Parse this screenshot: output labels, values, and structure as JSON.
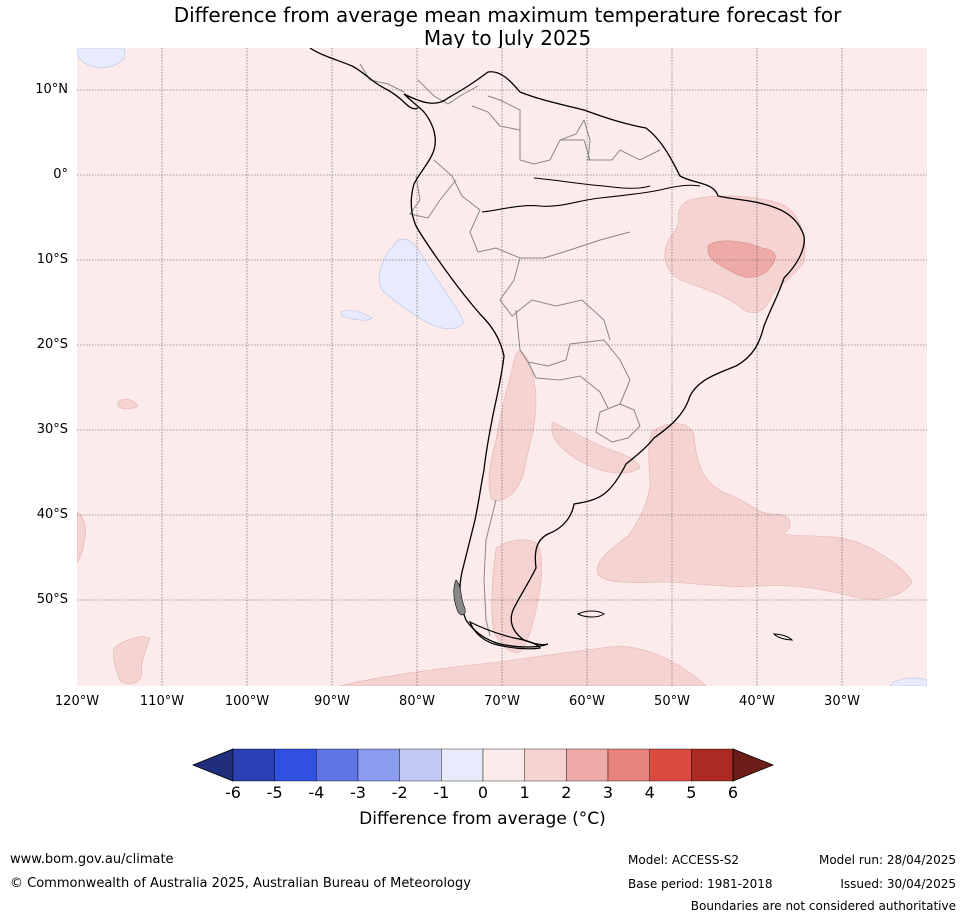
{
  "title": {
    "line1": "Difference from average mean maximum temperature forecast for",
    "line2": "May to July 2025"
  },
  "map": {
    "extent_lon": [
      -120,
      -20
    ],
    "extent_lat": [
      -60,
      15
    ],
    "lat_labels": [
      "10°N",
      "0°",
      "10°S",
      "20°S",
      "30°S",
      "40°S",
      "50°S"
    ],
    "lat_values": [
      10,
      0,
      -10,
      -20,
      -30,
      -40,
      -50
    ],
    "lon_labels": [
      "120°W",
      "110°W",
      "100°W",
      "90°W",
      "80°W",
      "70°W",
      "60°W",
      "50°W",
      "40°W",
      "30°W"
    ],
    "lon_values": [
      -120,
      -110,
      -100,
      -90,
      -80,
      -70,
      -60,
      -50,
      -40,
      -30
    ],
    "colors": {
      "background": "#fbebea",
      "anomaly_1_2": "#f5d3d1",
      "anomaly_2_3": "#edaaa7",
      "anomaly_neg": "#e7ebfb",
      "coastline": "#000000",
      "borders": "#888888"
    }
  },
  "colorbar": {
    "ticks": [
      "-6",
      "-5",
      "-4",
      "-3",
      "-2",
      "-1",
      "0",
      "1",
      "2",
      "3",
      "4",
      "5",
      "6"
    ],
    "colors": [
      "#1f2d7a",
      "#2a3fb3",
      "#3050e0",
      "#5f75e6",
      "#8b9cee",
      "#c2c9f4",
      "#e8ebfb",
      "#fbebea",
      "#f5d3d1",
      "#edaaa7",
      "#e8837d",
      "#da4a3f",
      "#ab2b22",
      "#6e1c17"
    ],
    "label": "Difference from average (°C)"
  },
  "footer": {
    "website": "www.bom.gov.au/climate",
    "copyright": "© Commonwealth of Australia 2025, Australian Bureau of Meteorology",
    "model": "Model: ACCESS-S2",
    "base_period": "Base period: 1981-2018",
    "model_run": "Model run: 28/04/2025",
    "issued": "Issued: 30/04/2025",
    "disclaimer": "Boundaries are not considered authoritative"
  }
}
